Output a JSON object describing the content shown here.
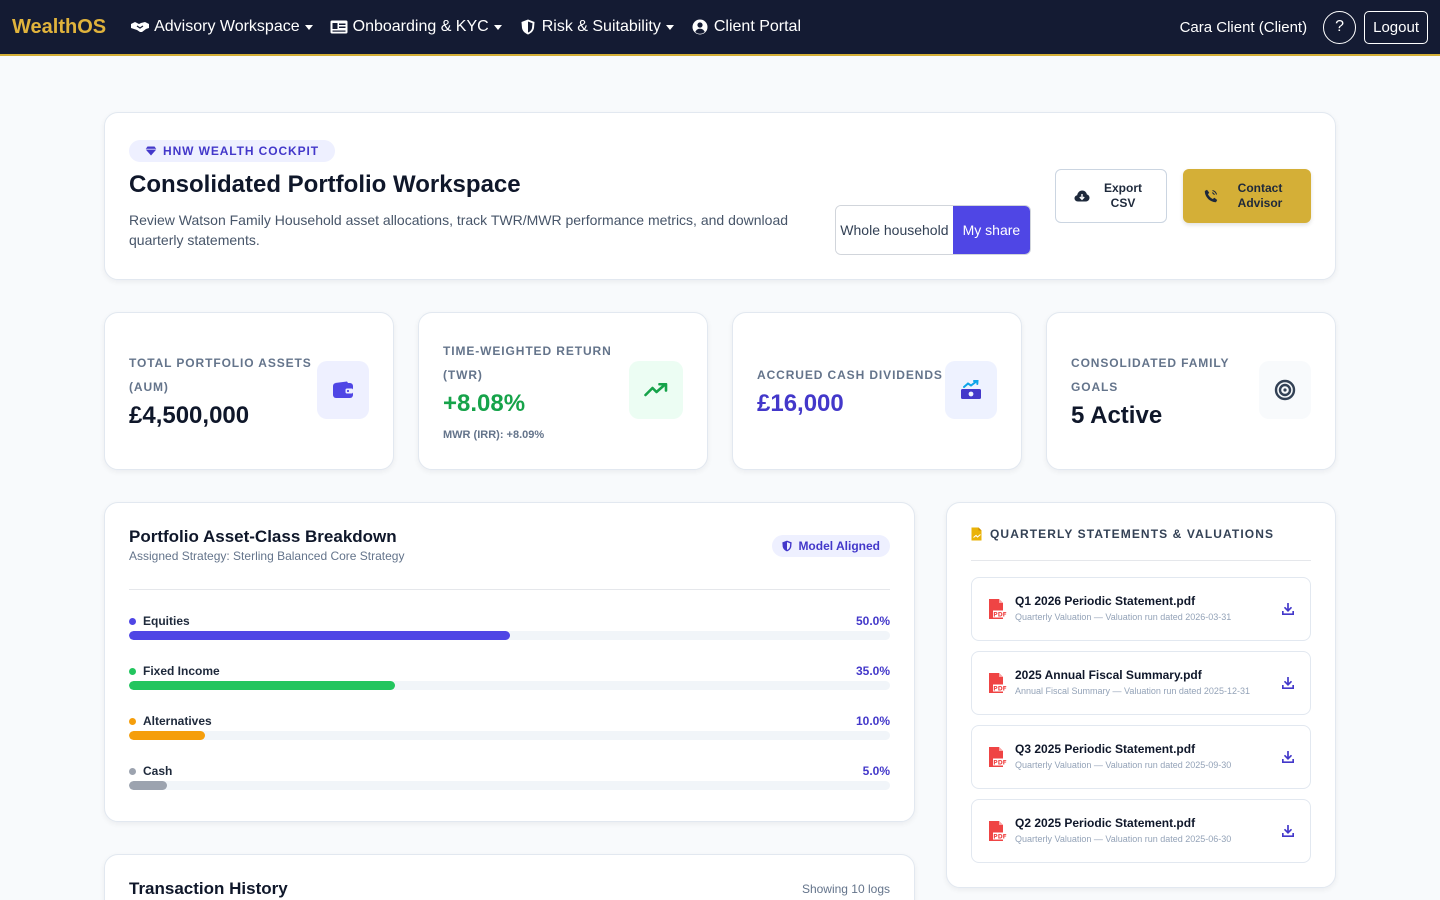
{
  "navbar": {
    "brand": "WealthOS",
    "items": [
      {
        "label": "Advisory Workspace",
        "icon": "handshake-icon",
        "dropdown": true
      },
      {
        "label": "Onboarding & KYC",
        "icon": "id-card-icon",
        "dropdown": true
      },
      {
        "label": "Risk & Suitability",
        "icon": "shield-icon",
        "dropdown": true
      },
      {
        "label": "Client Portal",
        "icon": "user-circle-icon",
        "dropdown": false
      }
    ],
    "user_label": "Cara Client (Client)",
    "help_label": "?",
    "logout_label": "Logout"
  },
  "hero": {
    "badge": "HNW WEALTH COCKPIT",
    "title": "Consolidated Portfolio Workspace",
    "description": "Review Watson Family Household asset allocations, track TWR/MWR performance metrics, and download quarterly statements.",
    "toggle": {
      "whole": "Whole household",
      "mine": "My share",
      "selected": "mine"
    },
    "export_label": "Export CSV",
    "contact_label": "Contact Advisor"
  },
  "kpis": {
    "aum": {
      "label": "TOTAL PORTFOLIO ASSETS (AUM)",
      "value": "£4,500,000",
      "icon": "wallet-icon"
    },
    "twr": {
      "label": "TIME-WEIGHTED RETURN (TWR)",
      "value": "+8.08%",
      "sub": "MWR (IRR): +8.09%",
      "icon": "trend-up-icon"
    },
    "dividends": {
      "label": "ACCRUED CASH DIVIDENDS",
      "value": "£16,000",
      "icon": "cash-dividend-icon"
    },
    "goals": {
      "label": "CONSOLIDATED FAMILY GOALS",
      "value": "5 Active",
      "icon": "target-icon"
    }
  },
  "breakdown": {
    "title": "Portfolio Asset-Class Breakdown",
    "subtitle": "Assigned Strategy: Sterling Balanced Core Strategy",
    "badge": "Model Aligned",
    "assets": [
      {
        "name": "Equities",
        "pct_label": "50.0%",
        "fraction": 0.5,
        "color": "#4f46e5"
      },
      {
        "name": "Fixed Income",
        "pct_label": "35.0%",
        "fraction": 0.35,
        "color": "#22c55e"
      },
      {
        "name": "Alternatives",
        "pct_label": "10.0%",
        "fraction": 0.1,
        "color": "#f59e0b"
      },
      {
        "name": "Cash",
        "pct_label": "5.0%",
        "fraction": 0.05,
        "color": "#9ca3af"
      }
    ]
  },
  "transactions": {
    "title": "Transaction History",
    "count_label": "Showing 10 logs"
  },
  "statements": {
    "heading": "QUARTERLY STATEMENTS & VALUATIONS",
    "docs": [
      {
        "name": "Q1 2026 Periodic Statement.pdf",
        "meta": "Quarterly Valuation — Valuation run dated 2026-03-31"
      },
      {
        "name": "2025 Annual Fiscal Summary.pdf",
        "meta": "Annual Fiscal Summary — Valuation run dated 2025-12-31"
      },
      {
        "name": "Q3 2025 Periodic Statement.pdf",
        "meta": "Quarterly Valuation — Valuation run dated 2025-09-30"
      },
      {
        "name": "Q2 2025 Periodic Statement.pdf",
        "meta": "Quarterly Valuation — Valuation run dated 2025-06-30"
      }
    ]
  },
  "colors": {
    "accent": "#4f46e5",
    "gold": "#d4af37",
    "navbar": "#141b33",
    "positive": "#16a34a"
  }
}
